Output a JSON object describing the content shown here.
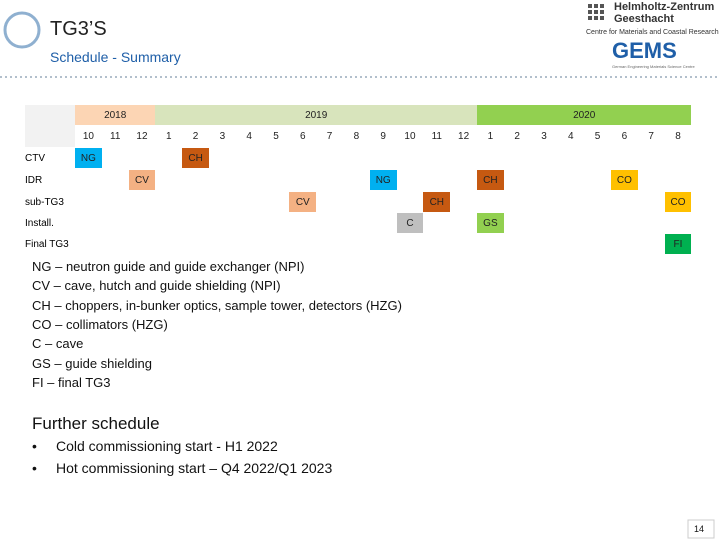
{
  "header": {
    "title": "TG3’S",
    "subtitle": "Schedule - Summary",
    "org_name": [
      "Helmholtz-Zentrum",
      "Geesthacht"
    ],
    "org_tagline": "Centre for Materials and Coastal Research",
    "brand": "GEMS",
    "brand_tagline": "German Engineering Materials Science Centre"
  },
  "table": {
    "years": [
      {
        "label": "2018",
        "months": [
          "10",
          "11",
          "12"
        ],
        "color": "#fcd5b4"
      },
      {
        "label": "2019",
        "months": [
          "1",
          "2",
          "3",
          "4",
          "5",
          "6",
          "7",
          "8",
          "9",
          "10",
          "11",
          "12"
        ],
        "color": "#d8e4bc"
      },
      {
        "label": "2020",
        "months": [
          "1",
          "2",
          "3",
          "4",
          "5",
          "6",
          "7",
          "8"
        ],
        "color": "#92d050"
      }
    ],
    "rows": [
      {
        "label": "CTV",
        "cells": [
          {
            "text": "NG",
            "color": "#00b0f0"
          },
          null,
          null,
          null,
          {
            "text": "CH",
            "color": "#c65911"
          },
          null,
          null,
          null,
          null,
          null,
          null,
          null,
          null,
          null,
          null,
          null,
          null,
          null,
          null,
          null,
          null,
          null,
          null
        ]
      },
      {
        "label": "IDR",
        "cells": [
          null,
          null,
          {
            "text": "CV",
            "color": "#f4b183"
          },
          null,
          null,
          null,
          null,
          null,
          null,
          null,
          null,
          {
            "text": "NG",
            "color": "#00b0f0"
          },
          null,
          null,
          null,
          {
            "text": "CH",
            "color": "#c65911"
          },
          null,
          null,
          null,
          null,
          {
            "text": "CO",
            "color": "#ffc000"
          },
          null,
          null
        ]
      },
      {
        "label": "sub-TG3",
        "cells": [
          null,
          null,
          null,
          null,
          null,
          null,
          null,
          null,
          {
            "text": "CV",
            "color": "#f4b183"
          },
          null,
          null,
          null,
          null,
          {
            "text": "CH",
            "color": "#c65911"
          },
          null,
          null,
          null,
          null,
          null,
          null,
          null,
          null,
          {
            "text": "CO",
            "color": "#ffc000"
          }
        ]
      },
      {
        "label": "Install.",
        "cells": [
          null,
          null,
          null,
          null,
          null,
          null,
          null,
          null,
          null,
          null,
          null,
          null,
          {
            "text": "C",
            "color": "#bfbfbf"
          },
          null,
          null,
          {
            "text": "GS",
            "color": "#92d050"
          },
          null,
          null,
          null,
          null,
          null,
          null,
          null
        ]
      },
      {
        "label": "Final TG3",
        "cells": [
          null,
          null,
          null,
          null,
          null,
          null,
          null,
          null,
          null,
          null,
          null,
          null,
          null,
          null,
          null,
          null,
          null,
          null,
          null,
          null,
          null,
          null,
          {
            "text": "FI",
            "color": "#00b050"
          }
        ]
      }
    ]
  },
  "legend": [
    "NG – neutron guide and guide exchanger (NPI)",
    "CV – cave, hutch and guide shielding (NPI)",
    "CH – choppers, in-bunker optics, sample tower, detectors (HZG)",
    "CO – collimators (HZG)",
    "C – cave",
    "GS – guide shielding",
    "FI – final TG3"
  ],
  "further": {
    "heading": "Further schedule",
    "items": [
      "Cold commissioning start  - H1 2022",
      "Hot commissioning start – Q4 2022/Q1 2023"
    ]
  },
  "page_number": "14"
}
